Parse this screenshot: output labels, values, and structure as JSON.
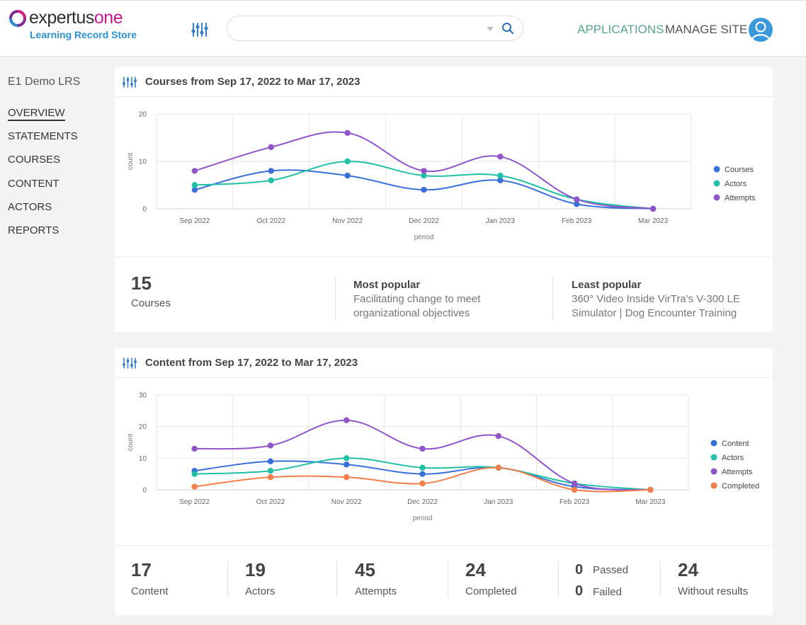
{
  "header": {
    "logo": {
      "word_a": "expertus",
      "word_b": "one",
      "subtitle": "Learning Record Store"
    },
    "search": {
      "placeholder": "",
      "value": ""
    },
    "nav": {
      "applications": "APPLICATIONS",
      "manage_site": "MANAGE SITE"
    },
    "colors": {
      "applications": "#58a58a",
      "accent": "#2b8fce"
    }
  },
  "sidebar": {
    "title": "E1 Demo LRS",
    "items": [
      {
        "label": "OVERVIEW",
        "active": true
      },
      {
        "label": "STATEMENTS",
        "active": false
      },
      {
        "label": "COURSES",
        "active": false
      },
      {
        "label": "CONTENT",
        "active": false
      },
      {
        "label": "ACTORS",
        "active": false
      },
      {
        "label": "REPORTS",
        "active": false
      }
    ]
  },
  "courses_panel": {
    "title": "Courses from Sep 17, 2022 to Mar 17, 2023",
    "stats": {
      "count": "15",
      "count_label": "Courses",
      "most_popular_title": "Most popular",
      "most_popular_line1": "Facilitating change to meet",
      "most_popular_line2": "organizational objectives",
      "least_popular_title": "Least popular",
      "least_popular_line1": "360° Video Inside VirTra's V-300 LE",
      "least_popular_line2": "Simulator | Dog Encounter Training"
    }
  },
  "content_panel": {
    "title": "Content from Sep 17, 2022 to Mar 17, 2023",
    "stats": {
      "content": "17",
      "content_label": "Content",
      "actors": "19",
      "actors_label": "Actors",
      "attempts": "45",
      "attempts_label": "Attempts",
      "completed": "24",
      "completed_label": "Completed",
      "passed": "0",
      "passed_label": "Passed",
      "failed": "0",
      "failed_label": "Failed",
      "without": "24",
      "without_label": "Without results"
    }
  },
  "chart_data": [
    {
      "type": "line",
      "title": "",
      "xlabel": "period",
      "ylabel": "count",
      "categories": [
        "Sep 2022",
        "Oct 2022",
        "Nov 2022",
        "Dec 2022",
        "Jan 2023",
        "Feb 2023",
        "Mar 2023"
      ],
      "ylim": [
        0,
        20
      ],
      "yticks": [
        0,
        10,
        20
      ],
      "grid": true,
      "legend": "right",
      "series": [
        {
          "name": "Courses",
          "color": "#3a6fd8",
          "values": [
            4,
            8,
            7,
            4,
            6,
            1,
            0
          ]
        },
        {
          "name": "Actors",
          "color": "#20bfa6",
          "values": [
            5,
            6,
            10,
            7,
            7,
            2,
            0
          ]
        },
        {
          "name": "Attempts",
          "color": "#8f55c9",
          "values": [
            8,
            13,
            16,
            8,
            11,
            2,
            0
          ]
        }
      ]
    },
    {
      "type": "line",
      "title": "",
      "xlabel": "period",
      "ylabel": "count",
      "categories": [
        "Sep 2022",
        "Oct 2022",
        "Nov 2022",
        "Dec 2022",
        "Jan 2023",
        "Feb 2023",
        "Mar 2023"
      ],
      "ylim": [
        0,
        30
      ],
      "yticks": [
        0,
        10,
        20,
        30
      ],
      "grid": true,
      "legend": "right",
      "series": [
        {
          "name": "Content",
          "color": "#3a6fd8",
          "values": [
            6,
            9,
            8,
            5,
            7,
            1,
            0
          ]
        },
        {
          "name": "Actors",
          "color": "#20bfa6",
          "values": [
            5,
            6,
            10,
            7,
            7,
            2,
            0
          ]
        },
        {
          "name": "Attempts",
          "color": "#8f55c9",
          "values": [
            13,
            14,
            22,
            13,
            17,
            2,
            0
          ]
        },
        {
          "name": "Completed",
          "color": "#f07f4b",
          "values": [
            1,
            4,
            4,
            2,
            7,
            0,
            0
          ]
        }
      ]
    }
  ]
}
